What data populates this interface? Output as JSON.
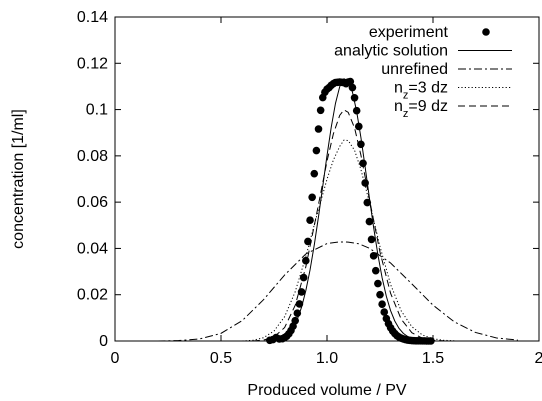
{
  "chart_data": {
    "type": "line",
    "xlabel": "Produced volume / PV",
    "ylabel": "concentration [1/ml]",
    "xlim": [
      0,
      2
    ],
    "ylim": [
      0,
      0.14
    ],
    "x_ticks": [
      "0",
      "0.5",
      "1.0",
      "1.5",
      "2"
    ],
    "y_ticks": [
      "0",
      "0.02",
      "0.04",
      "0.06",
      "0.08",
      "0.1",
      "0.12",
      "0.14"
    ],
    "grid": false,
    "legend_position": "top-right",
    "series": [
      {
        "name": "experiment",
        "style": "points",
        "x": [
          0.73,
          0.745,
          0.76,
          0.775,
          0.79,
          0.8,
          0.81,
          0.82,
          0.83,
          0.84,
          0.85,
          0.86,
          0.87,
          0.88,
          0.89,
          0.9,
          0.91,
          0.92,
          0.93,
          0.94,
          0.95,
          0.96,
          0.97,
          0.98,
          0.99,
          1.0,
          1.01,
          1.02,
          1.03,
          1.04,
          1.05,
          1.06,
          1.07,
          1.08,
          1.09,
          1.1,
          1.11,
          1.12,
          1.13,
          1.14,
          1.15,
          1.16,
          1.17,
          1.18,
          1.19,
          1.2,
          1.21,
          1.22,
          1.23,
          1.24,
          1.25,
          1.26,
          1.27,
          1.28,
          1.29,
          1.3,
          1.31,
          1.32,
          1.33,
          1.34,
          1.35,
          1.36,
          1.37,
          1.38,
          1.39,
          1.4,
          1.41,
          1.42,
          1.43,
          1.44,
          1.45,
          1.46,
          1.47,
          1.48,
          1.49
        ],
        "y": [
          0.0003,
          0.0006,
          0.0015,
          0.0009,
          0.001,
          0.0015,
          0.0021,
          0.0031,
          0.0045,
          0.0064,
          0.0088,
          0.012,
          0.016,
          0.0212,
          0.0274,
          0.0347,
          0.043,
          0.0522,
          0.0621,
          0.0723,
          0.0823,
          0.0916,
          0.0997,
          0.1052,
          0.1075,
          0.1088,
          0.1095,
          0.1105,
          0.1112,
          0.1117,
          0.1118,
          0.1119,
          0.1118,
          0.1116,
          0.1112,
          0.1119,
          0.1121,
          0.1095,
          0.1051,
          0.0995,
          0.0927,
          0.085,
          0.0768,
          0.0683,
          0.0598,
          0.0516,
          0.0439,
          0.0368,
          0.0304,
          0.0248,
          0.02,
          0.0159,
          0.0125,
          0.0097,
          0.0075,
          0.0057,
          0.0043,
          0.0032,
          0.0023,
          0.0017,
          0.0012,
          0.0009,
          0.0006,
          0.0004,
          0.0003,
          0.0002,
          0.00015,
          0.0001,
          0.0001,
          0.0001,
          5e-05,
          5e-05,
          0.0,
          0.0,
          0.0
        ]
      },
      {
        "name": "analytic solution",
        "style": "solid",
        "x": [
          0.7,
          0.72,
          0.74,
          0.76,
          0.78,
          0.8,
          0.82,
          0.84,
          0.86,
          0.88,
          0.9,
          0.92,
          0.94,
          0.96,
          0.98,
          1.0,
          1.02,
          1.04,
          1.06,
          1.08,
          1.1,
          1.12,
          1.14,
          1.16,
          1.18,
          1.2,
          1.22,
          1.24,
          1.26,
          1.28,
          1.3,
          1.32,
          1.34,
          1.36,
          1.38,
          1.4,
          1.42,
          1.44,
          1.46,
          1.48,
          1.5
        ],
        "y": [
          0.0,
          0.0001,
          0.0002,
          0.0004,
          0.0009,
          0.0018,
          0.0033,
          0.0057,
          0.0094,
          0.0146,
          0.0217,
          0.0307,
          0.0415,
          0.0538,
          0.0669,
          0.0801,
          0.0924,
          0.1027,
          0.1099,
          0.1133,
          0.1125,
          0.1076,
          0.0991,
          0.0879,
          0.0751,
          0.0618,
          0.049,
          0.0373,
          0.0273,
          0.0193,
          0.0131,
          0.0086,
          0.0054,
          0.0033,
          0.002,
          0.0011,
          0.0006,
          0.0003,
          0.0002,
          0.0001,
          0.0
        ]
      },
      {
        "name": "unrefined",
        "style": "dashdot",
        "x": [
          0.2,
          0.3,
          0.4,
          0.5,
          0.6,
          0.7,
          0.8,
          0.9,
          1.0,
          1.05,
          1.08,
          1.1,
          1.15,
          1.2,
          1.3,
          1.4,
          1.5,
          1.6,
          1.7,
          1.8,
          1.9
        ],
        "y": [
          0.0,
          0.0002,
          0.0009,
          0.0033,
          0.0088,
          0.0178,
          0.0285,
          0.0376,
          0.0421,
          0.0427,
          0.0428,
          0.0427,
          0.042,
          0.0401,
          0.0337,
          0.0247,
          0.0155,
          0.0083,
          0.0037,
          0.0013,
          0.0004
        ]
      },
      {
        "name": "n_z=3 dz",
        "style": "dotted",
        "x": [
          0.6,
          0.65,
          0.7,
          0.75,
          0.8,
          0.85,
          0.9,
          0.95,
          1.0,
          1.03,
          1.06,
          1.08,
          1.1,
          1.13,
          1.16,
          1.2,
          1.25,
          1.3,
          1.35,
          1.4,
          1.45,
          1.5,
          1.55,
          1.6
        ],
        "y": [
          0.0,
          0.0003,
          0.0014,
          0.0043,
          0.0105,
          0.0213,
          0.0364,
          0.0536,
          0.0699,
          0.0782,
          0.0841,
          0.0868,
          0.0866,
          0.0824,
          0.0741,
          0.0599,
          0.0408,
          0.0244,
          0.013,
          0.0062,
          0.0026,
          0.001,
          0.0003,
          0.0001
        ]
      },
      {
        "name": "n_z=9 dz",
        "style": "dashed",
        "x": [
          0.65,
          0.7,
          0.75,
          0.8,
          0.85,
          0.9,
          0.95,
          1.0,
          1.03,
          1.06,
          1.08,
          1.1,
          1.13,
          1.16,
          1.2,
          1.25,
          1.3,
          1.35,
          1.4,
          1.45,
          1.5,
          1.55
        ],
        "y": [
          0.0,
          0.0004,
          0.0017,
          0.0058,
          0.0154,
          0.032,
          0.0544,
          0.0777,
          0.0895,
          0.0975,
          0.0999,
          0.0988,
          0.0921,
          0.0803,
          0.0613,
          0.0384,
          0.0206,
          0.0094,
          0.0036,
          0.0012,
          0.0003,
          0.0001
        ]
      }
    ]
  }
}
